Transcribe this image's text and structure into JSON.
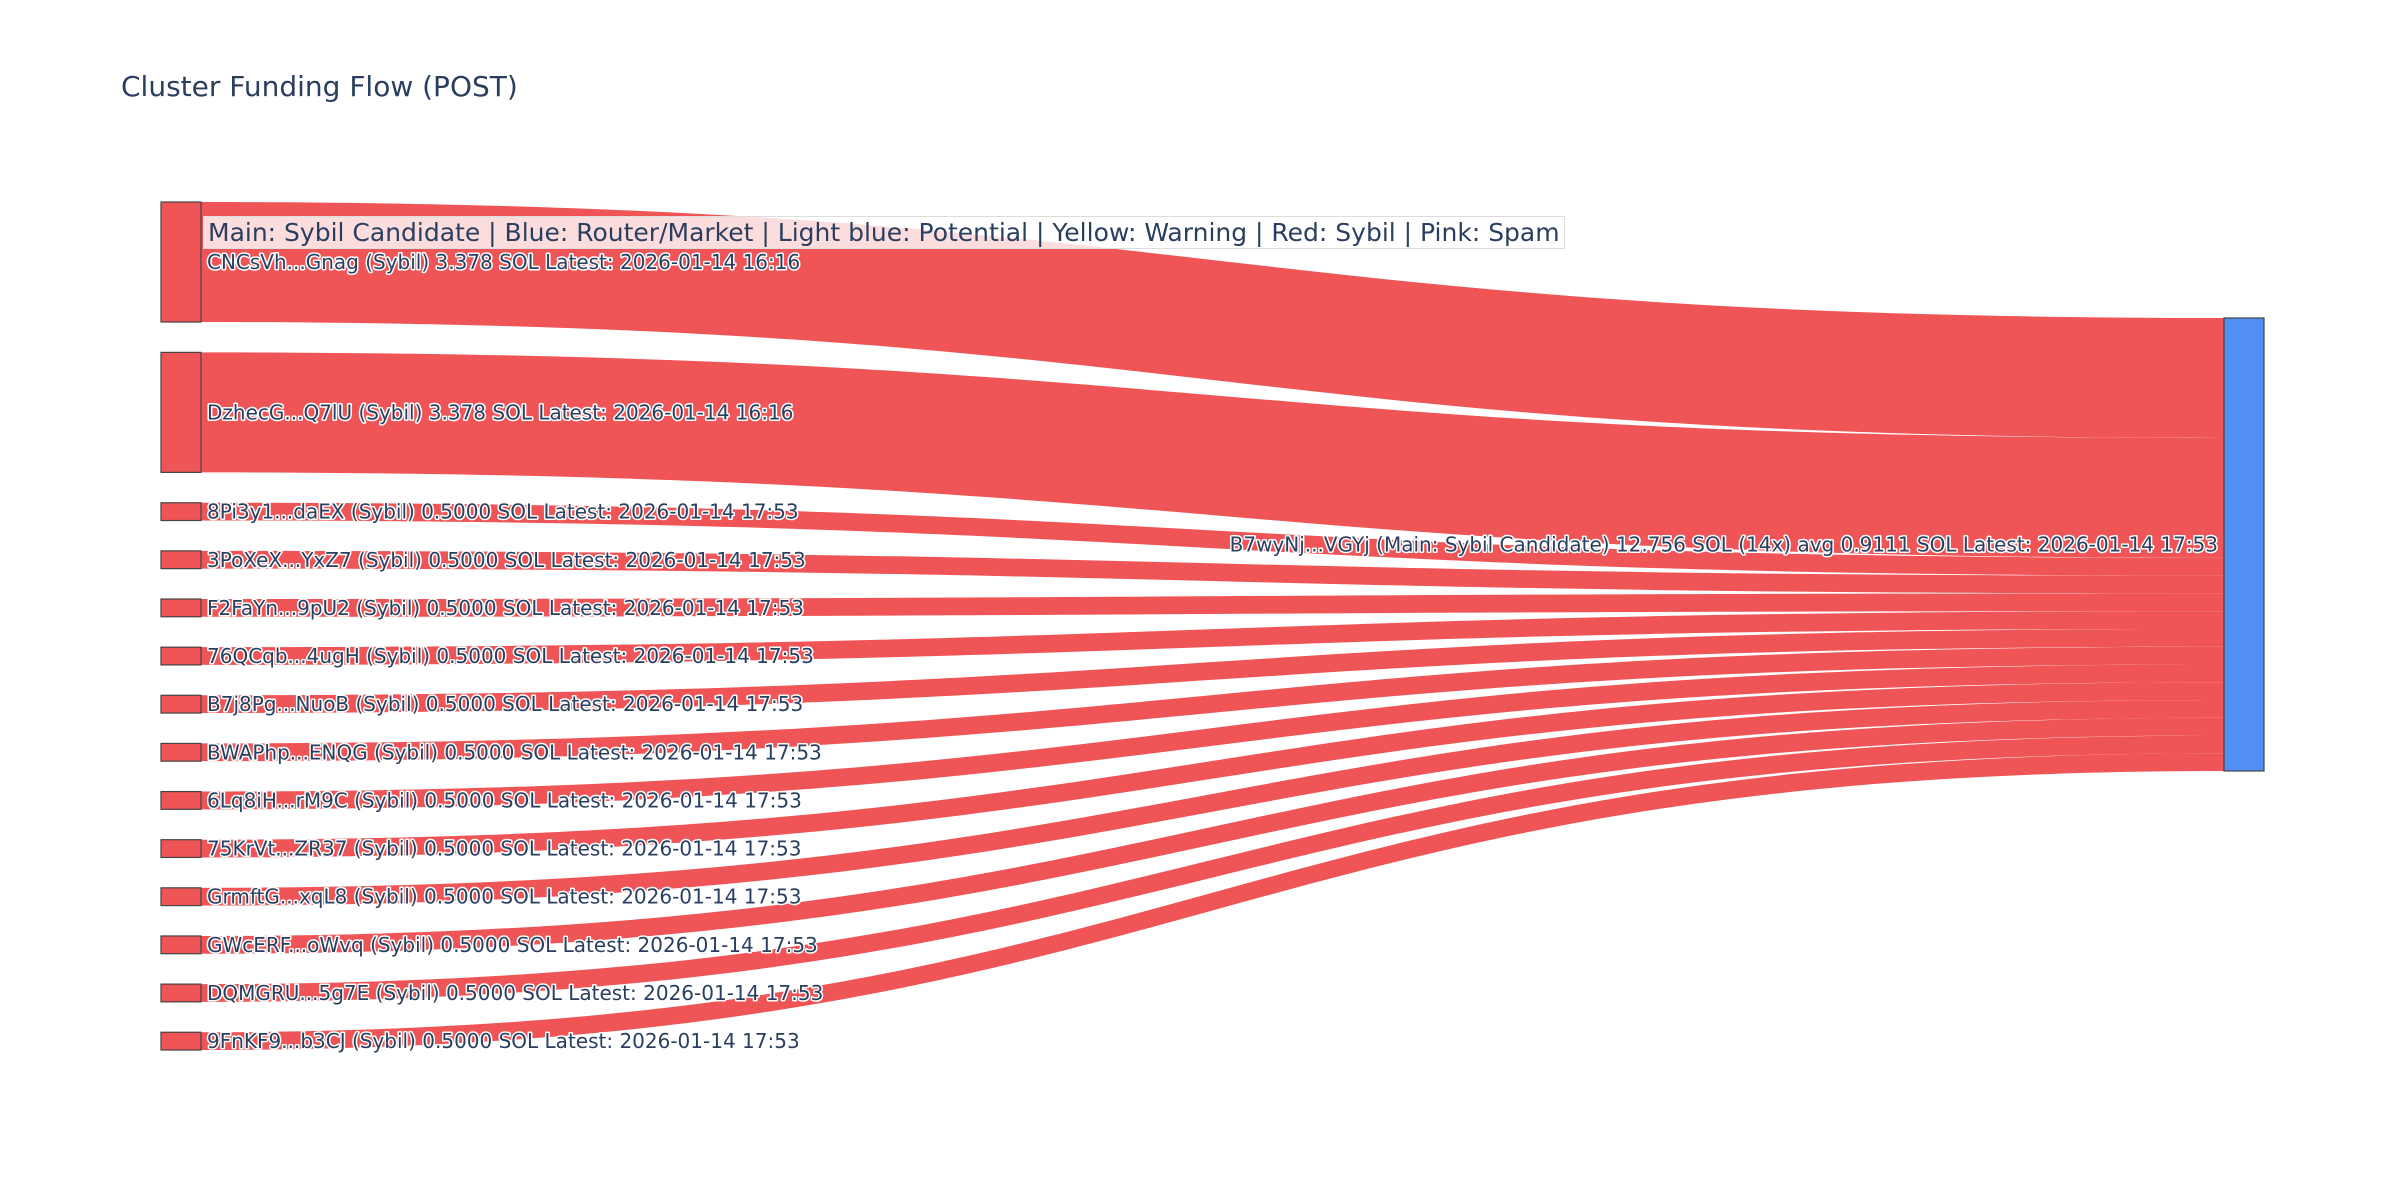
{
  "title": "Cluster Funding Flow (POST)",
  "legend_note": "Main: Sybil Candidate  |  Blue: Router/Market | Light blue: Potential | Yellow: Warning | Red: Sybil | Pink: Spam",
  "colors": {
    "link": "#ef5556",
    "source_node": "#ef5556",
    "target_node": "#528ff5",
    "node_border": "#444444",
    "text": "#2a3f5f"
  },
  "chart_data": {
    "type": "sankey",
    "title": "Cluster Funding Flow (POST)",
    "target": {
      "label": "B7wyNj...VGYj (Main: Sybil Candidate) 12.756 SOL (14x) avg 0.9111 SOL Latest: 2026-01-14 17:53",
      "value": 12.756
    },
    "sources": [
      {
        "label": "CNCsVh...Gnag (Sybil) 3.378 SOL Latest: 2026-01-14 16:16",
        "value": 3.378
      },
      {
        "label": "DzhecG...Q7lU (Sybil) 3.378 SOL Latest: 2026-01-14 16:16",
        "value": 3.378
      },
      {
        "label": "8Pi3y1...daEX (Sybil) 0.5000 SOL Latest: 2026-01-14 17:53",
        "value": 0.5
      },
      {
        "label": "3PoXeX...YxZ7 (Sybil) 0.5000 SOL Latest: 2026-01-14 17:53",
        "value": 0.5
      },
      {
        "label": "F2FaYn...9pU2 (Sybil) 0.5000 SOL Latest: 2026-01-14 17:53",
        "value": 0.5
      },
      {
        "label": "76QCqb...4ugH (Sybil) 0.5000 SOL Latest: 2026-01-14 17:53",
        "value": 0.5
      },
      {
        "label": "B7j8Pg...NuoB (Sybil) 0.5000 SOL Latest: 2026-01-14 17:53",
        "value": 0.5
      },
      {
        "label": "BWAPhp...ENQG (Sybil) 0.5000 SOL Latest: 2026-01-14 17:53",
        "value": 0.5
      },
      {
        "label": "6Lq8iH...rM9C (Sybil) 0.5000 SOL Latest: 2026-01-14 17:53",
        "value": 0.5
      },
      {
        "label": "75KrVt...ZR37 (Sybil) 0.5000 SOL Latest: 2026-01-14 17:53",
        "value": 0.5
      },
      {
        "label": "GrmftG...xqL8 (Sybil) 0.5000 SOL Latest: 2026-01-14 17:53",
        "value": 0.5
      },
      {
        "label": "GWcERF...oWvq (Sybil) 0.5000 SOL Latest: 2026-01-14 17:53",
        "value": 0.5
      },
      {
        "label": "DQMGRU...5g7E (Sybil) 0.5000 SOL Latest: 2026-01-14 17:53",
        "value": 0.5
      },
      {
        "label": "9FnKF9...b3CJ (Sybil) 0.5000 SOL Latest: 2026-01-14 17:53",
        "value": 0.5
      }
    ]
  }
}
